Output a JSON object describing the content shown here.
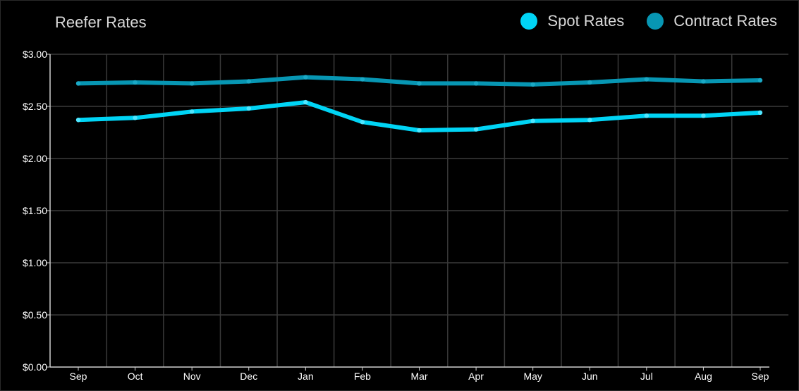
{
  "chart_data": {
    "type": "line",
    "title": "Reefer Rates",
    "xlabel": "",
    "ylabel": "",
    "categories": [
      "Sep",
      "Oct",
      "Nov",
      "Dec",
      "Jan",
      "Feb",
      "Mar",
      "Apr",
      "May",
      "Jun",
      "Jul",
      "Aug",
      "Sep"
    ],
    "ylim": [
      0,
      3
    ],
    "yticks": [
      "$0.00",
      "$0.50",
      "$1.00",
      "$1.50",
      "$2.00",
      "$2.50",
      "$3.00"
    ],
    "ytick_values": [
      0,
      0.5,
      1,
      1.5,
      2,
      2.5,
      3
    ],
    "grid": true,
    "legend_position": "top-right",
    "series": [
      {
        "name": "Spot Rates",
        "color": "#00d4f5",
        "values": [
          2.37,
          2.39,
          2.45,
          2.48,
          2.54,
          2.35,
          2.27,
          2.28,
          2.36,
          2.37,
          2.41,
          2.41,
          2.44
        ]
      },
      {
        "name": "Contract Rates",
        "color": "#0796b3",
        "values": [
          2.72,
          2.73,
          2.72,
          2.74,
          2.78,
          2.76,
          2.72,
          2.72,
          2.71,
          2.73,
          2.76,
          2.74,
          2.75
        ]
      }
    ]
  }
}
